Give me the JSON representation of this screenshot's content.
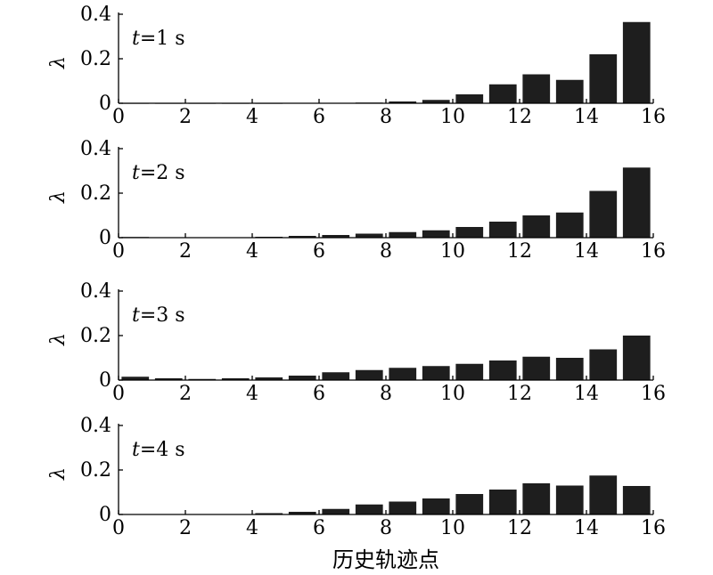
{
  "chart_data": [
    {
      "type": "bar",
      "annotation": {
        "var": "t",
        "rest": "=1 s"
      },
      "ylabel": "λ",
      "xlabel": "",
      "xlim": [
        0,
        16
      ],
      "ylim": [
        0,
        0.4
      ],
      "xticks": [
        "0",
        "2",
        "4",
        "6",
        "8",
        "10",
        "12",
        "14",
        "16"
      ],
      "yticks": [
        "0",
        "0.2",
        "0.4"
      ],
      "x": [
        0.5,
        1.5,
        2.5,
        3.5,
        4.5,
        5.5,
        6.5,
        7.5,
        8.5,
        9.5,
        10.5,
        11.5,
        12.5,
        13.5,
        14.5,
        15.5
      ],
      "values": [
        0,
        0,
        0,
        0,
        0,
        0.001,
        0.002,
        0.003,
        0.008,
        0.015,
        0.04,
        0.085,
        0.13,
        0.105,
        0.22,
        0.365
      ]
    },
    {
      "type": "bar",
      "annotation": {
        "var": "t",
        "rest": "=2 s"
      },
      "ylabel": "λ",
      "xlabel": "",
      "xlim": [
        0,
        16
      ],
      "ylim": [
        0,
        0.4
      ],
      "xticks": [
        "0",
        "2",
        "4",
        "6",
        "8",
        "10",
        "12",
        "14",
        "16"
      ],
      "yticks": [
        "0",
        "0.2",
        "0.4"
      ],
      "x": [
        0.5,
        1.5,
        2.5,
        3.5,
        4.5,
        5.5,
        6.5,
        7.5,
        8.5,
        9.5,
        10.5,
        11.5,
        12.5,
        13.5,
        14.5,
        15.5
      ],
      "values": [
        0.003,
        0.001,
        0.001,
        0.002,
        0.004,
        0.008,
        0.012,
        0.018,
        0.025,
        0.033,
        0.048,
        0.072,
        0.1,
        0.113,
        0.21,
        0.315
      ]
    },
    {
      "type": "bar",
      "annotation": {
        "var": "t",
        "rest": "=3 s"
      },
      "ylabel": "λ",
      "xlabel": "",
      "xlim": [
        0,
        16
      ],
      "ylim": [
        0,
        0.4
      ],
      "xticks": [
        "0",
        "2",
        "4",
        "6",
        "8",
        "10",
        "12",
        "14",
        "16"
      ],
      "yticks": [
        "0",
        "0.2",
        "0.4"
      ],
      "x": [
        0.5,
        1.5,
        2.5,
        3.5,
        4.5,
        5.5,
        6.5,
        7.5,
        8.5,
        9.5,
        10.5,
        11.5,
        12.5,
        13.5,
        14.5,
        15.5
      ],
      "values": [
        0.015,
        0.008,
        0.005,
        0.008,
        0.012,
        0.02,
        0.035,
        0.045,
        0.055,
        0.063,
        0.073,
        0.088,
        0.105,
        0.1,
        0.138,
        0.2
      ]
    },
    {
      "type": "bar",
      "annotation": {
        "var": "t",
        "rest": "=4 s"
      },
      "ylabel": "λ",
      "xlabel": "历史轨迹点",
      "xlim": [
        0,
        16
      ],
      "ylim": [
        0,
        0.4
      ],
      "xticks": [
        "0",
        "2",
        "4",
        "6",
        "8",
        "10",
        "12",
        "14",
        "16"
      ],
      "yticks": [
        "0",
        "0.2",
        "0.4"
      ],
      "x": [
        0.5,
        1.5,
        2.5,
        3.5,
        4.5,
        5.5,
        6.5,
        7.5,
        8.5,
        9.5,
        10.5,
        11.5,
        12.5,
        13.5,
        14.5,
        15.5
      ],
      "values": [
        0.001,
        0.001,
        0.001,
        0.002,
        0.006,
        0.012,
        0.025,
        0.045,
        0.058,
        0.072,
        0.092,
        0.112,
        0.14,
        0.13,
        0.175,
        0.128
      ]
    }
  ]
}
